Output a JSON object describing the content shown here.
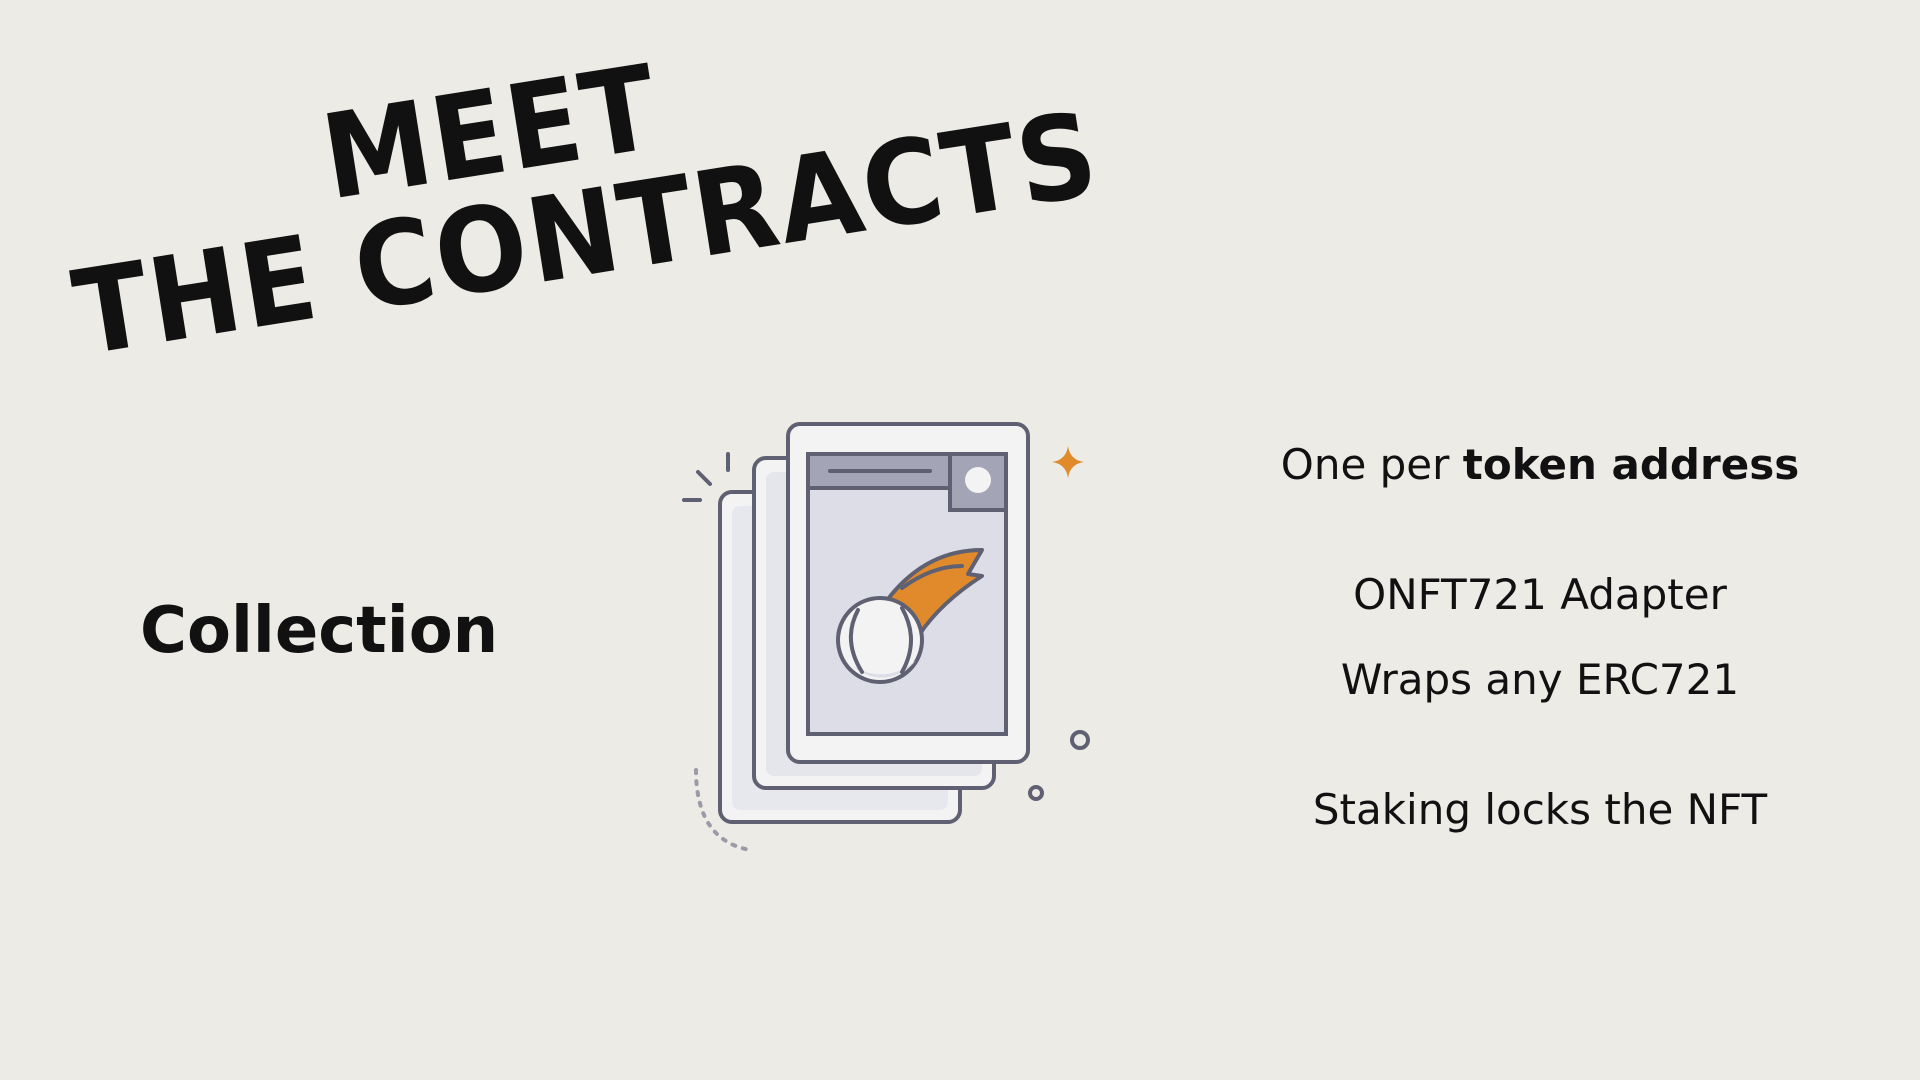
{
  "headline": {
    "line1": "MEET",
    "line2": "THE CONTRACTS"
  },
  "section_label": "Collection",
  "description": {
    "line1_prefix": "One per ",
    "line1_bold": "token address",
    "line2": "ONFT721 Adapter",
    "line3": "Wraps any ERC721",
    "line4": "Staking locks the NFT"
  },
  "illustration": {
    "icon": "baseball-card-stack-icon",
    "accent_color": "#e08a2c",
    "stroke_color": "#5f6072",
    "card_fill": "#f3f3f4",
    "panel_fill": "#dcdde6"
  },
  "colors": {
    "background": "#edebe6",
    "text": "#111111"
  }
}
